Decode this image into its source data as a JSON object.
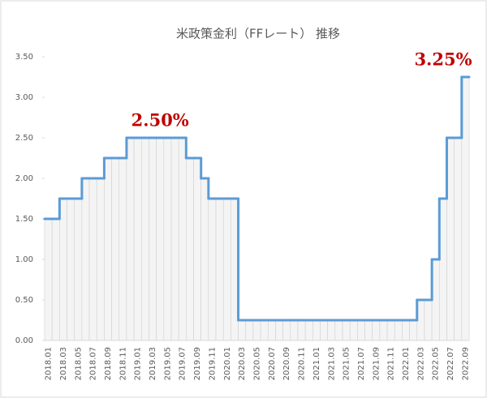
{
  "chart_data": {
    "type": "step",
    "title": "米政策金利（FFレート） 推移",
    "categories": [
      "2018.01",
      null,
      "2018.03",
      null,
      "2018.05",
      null,
      "2018.07",
      null,
      "2018.09",
      null,
      "2018.11",
      null,
      "2019.01",
      null,
      "2019.03",
      null,
      "2019.05",
      null,
      "2019.07",
      null,
      "2019.09",
      null,
      "2019.11",
      null,
      "2020.01",
      null,
      "2020.03",
      null,
      "2020.05",
      null,
      "2020.07",
      null,
      "2020.09",
      null,
      "2020.11",
      null,
      "2021.01",
      null,
      "2021.03",
      null,
      "2021.05",
      null,
      "2021.07",
      null,
      "2021.09",
      null,
      "2021.11",
      null,
      "2022.01",
      null,
      "2022.03",
      null,
      "2022.05",
      null,
      "2022.07",
      null,
      "2022.09"
    ],
    "values": [
      1.5,
      1.5,
      1.75,
      1.75,
      1.75,
      2.0,
      2.0,
      2.0,
      2.25,
      2.25,
      2.25,
      2.5,
      2.5,
      2.5,
      2.5,
      2.5,
      2.5,
      2.5,
      2.5,
      2.25,
      2.25,
      2.0,
      1.75,
      1.75,
      1.75,
      1.75,
      0.25,
      0.25,
      0.25,
      0.25,
      0.25,
      0.25,
      0.25,
      0.25,
      0.25,
      0.25,
      0.25,
      0.25,
      0.25,
      0.25,
      0.25,
      0.25,
      0.25,
      0.25,
      0.25,
      0.25,
      0.25,
      0.25,
      0.25,
      0.25,
      0.5,
      0.5,
      1.0,
      1.75,
      2.5,
      2.5,
      3.25
    ],
    "color": "#5b9bd5",
    "ylim": [
      0,
      3.5
    ],
    "yticks": [
      {
        "value": 0,
        "label": "0.00"
      },
      {
        "value": 0.5,
        "label": "0.50"
      },
      {
        "value": 1,
        "label": "1.00"
      },
      {
        "value": 1.5,
        "label": "1.50"
      },
      {
        "value": 2,
        "label": "2.00"
      },
      {
        "value": 2.5,
        "label": "2.50"
      },
      {
        "value": 3,
        "label": "3.00"
      },
      {
        "value": 3.5,
        "label": "3.50"
      }
    ],
    "annotations": [
      {
        "text": "2.50%",
        "index": 15
      },
      {
        "text": "3.25%",
        "index": 56
      }
    ]
  }
}
